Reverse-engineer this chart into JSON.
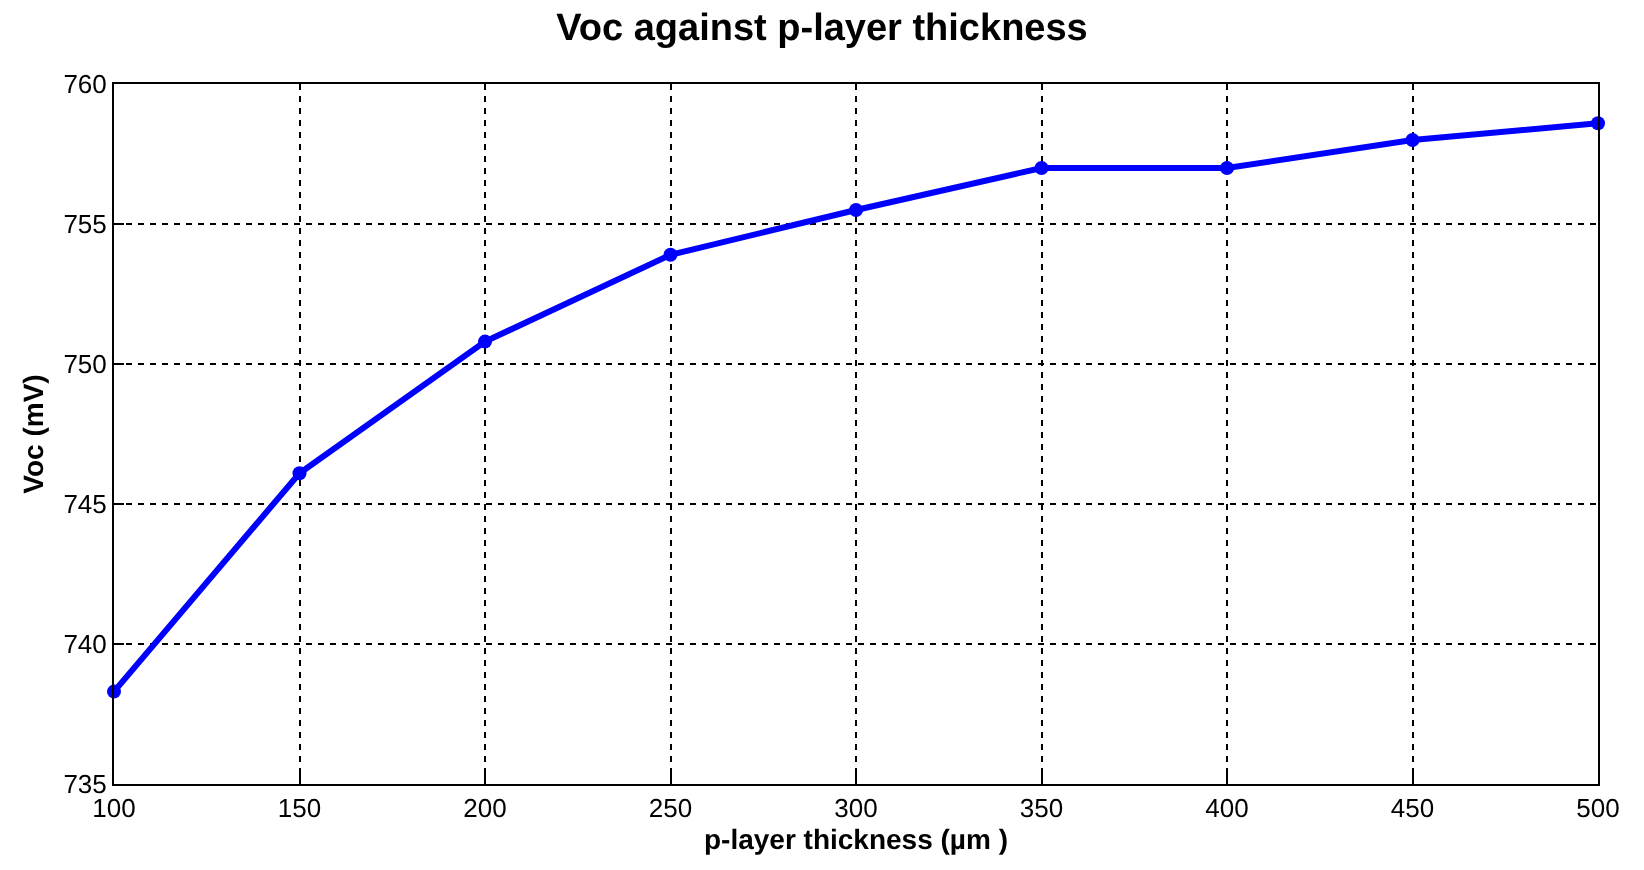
{
  "chart_data": {
    "type": "line",
    "title": "Voc against p-layer thickness",
    "xlabel": "p-layer thickness (µm )",
    "ylabel": "Voc (mV)",
    "x": [
      100,
      150,
      200,
      250,
      300,
      350,
      400,
      450,
      500
    ],
    "series": [
      {
        "color": "#0000ff",
        "values": [
          738.3,
          746.1,
          750.8,
          753.9,
          755.5,
          757.0,
          757.0,
          758.0,
          758.6
        ]
      }
    ],
    "xlim": [
      100,
      500
    ],
    "xticks": [
      100,
      150,
      200,
      250,
      300,
      350,
      400,
      450,
      500
    ],
    "ylim": [
      735,
      760
    ],
    "yticks": [
      735,
      740,
      745,
      750,
      755,
      760
    ],
    "grid": true,
    "marker": "circle",
    "line_style": "solid",
    "legend": false
  }
}
